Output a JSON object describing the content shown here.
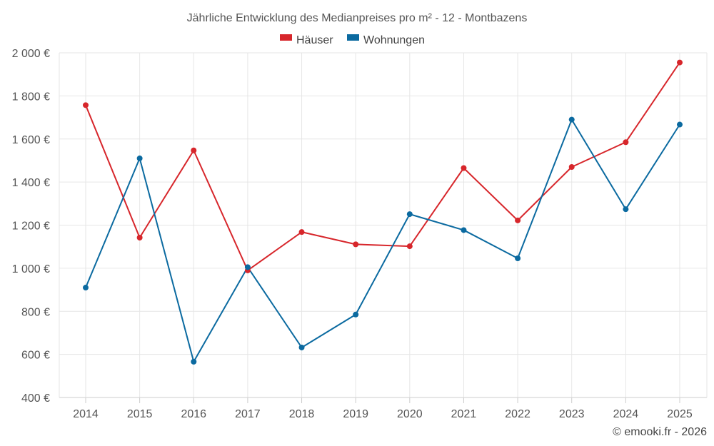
{
  "chart_data": {
    "type": "line",
    "title": "Jährliche Entwicklung des Medianpreises pro m² - 12 - Montbazens",
    "categories": [
      "2014",
      "2015",
      "2016",
      "2017",
      "2018",
      "2019",
      "2020",
      "2021",
      "2022",
      "2023",
      "2024",
      "2025"
    ],
    "series": [
      {
        "name": "Häuser",
        "color": "#d7262b",
        "values": [
          1757,
          1142,
          1547,
          990,
          1168,
          1111,
          1102,
          1465,
          1222,
          1470,
          1585,
          1955
        ]
      },
      {
        "name": "Wohnungen",
        "color": "#0b6aa0",
        "values": [
          910,
          1510,
          566,
          1005,
          632,
          785,
          1251,
          1177,
          1046,
          1690,
          1274,
          1667
        ]
      }
    ],
    "ylim": [
      400,
      2000
    ],
    "yticks": [
      400,
      600,
      800,
      1000,
      1200,
      1400,
      1600,
      1800,
      2000
    ],
    "ytick_labels": [
      "400 €",
      "600 €",
      "800 €",
      "1 000 €",
      "1 200 €",
      "1 400 €",
      "1 600 €",
      "1 800 €",
      "2 000 €"
    ],
    "xlabel": "",
    "ylabel": "",
    "grid": true,
    "legend": "top-center"
  },
  "credit": "© emooki.fr - 2026"
}
